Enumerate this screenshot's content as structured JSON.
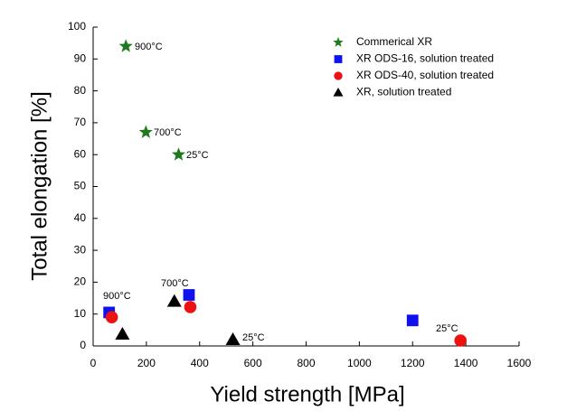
{
  "chart_data": {
    "type": "scatter",
    "x_label": "Yield strength [MPa]",
    "y_label": "Total elongation [%]",
    "xlim": [
      0,
      1600
    ],
    "xticks": [
      0,
      200,
      400,
      600,
      800,
      1000,
      1200,
      1400,
      1600
    ],
    "ylim": [
      0,
      100
    ],
    "yticks": [
      0,
      10,
      20,
      30,
      40,
      50,
      60,
      70,
      80,
      90,
      100
    ],
    "legend": "upper right",
    "series": [
      {
        "name": "Commerical XR",
        "color": "#1f7a1f",
        "marker": "star",
        "x": [
          123,
          198,
          321
        ],
        "values": [
          94,
          67,
          60
        ]
      },
      {
        "name": "XR ODS-16, solution treated",
        "color": "#1010ee",
        "marker": "square",
        "x": [
          60,
          360,
          1200
        ],
        "values": [
          10.5,
          16,
          8
        ]
      },
      {
        "name": "XR ODS-40, solution treated",
        "color": "#ee1111",
        "marker": "circle",
        "x": [
          70,
          365,
          1380
        ],
        "values": [
          9,
          12.2,
          1.7
        ]
      },
      {
        "name": "XR, solution treated",
        "color": "#000000",
        "marker": "triangle",
        "x": [
          110,
          305,
          525
        ],
        "values": [
          3.7,
          14,
          2
        ]
      }
    ],
    "annotations": [
      "900°C",
      "700°C",
      "25°C",
      "900°C",
      "700°C",
      "25°C",
      "25°C"
    ]
  }
}
